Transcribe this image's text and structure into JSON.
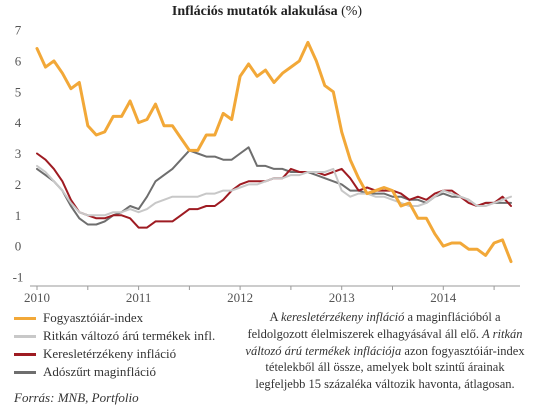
{
  "chart_data": {
    "type": "line",
    "title": "Inflációs mutatók alakulása",
    "title_unit": "(%)",
    "x": [
      "2010-01",
      "2010-02",
      "2010-03",
      "2010-04",
      "2010-05",
      "2010-06",
      "2010-07",
      "2010-08",
      "2010-09",
      "2010-10",
      "2010-11",
      "2010-12",
      "2011-01",
      "2011-02",
      "2011-03",
      "2011-04",
      "2011-05",
      "2011-06",
      "2011-07",
      "2011-08",
      "2011-09",
      "2011-10",
      "2011-11",
      "2011-12",
      "2012-01",
      "2012-02",
      "2012-03",
      "2012-04",
      "2012-05",
      "2012-06",
      "2012-07",
      "2012-08",
      "2012-09",
      "2012-10",
      "2012-11",
      "2012-12",
      "2013-01",
      "2013-02",
      "2013-03",
      "2013-04",
      "2013-05",
      "2013-06",
      "2013-07",
      "2013-08",
      "2013-09",
      "2013-10",
      "2013-11",
      "2013-12",
      "2014-01",
      "2014-02",
      "2014-03",
      "2014-04",
      "2014-05",
      "2014-06",
      "2014-07",
      "2014-08",
      "2014-09"
    ],
    "xticks": [
      "2010",
      "2011",
      "2012",
      "2013",
      "2014"
    ],
    "yticks": [
      7,
      6,
      5,
      4,
      3,
      2,
      1,
      0,
      -1
    ],
    "ylim": [
      -1,
      7
    ],
    "grid": false,
    "legend": "bottom-left",
    "series": [
      {
        "name": "Fogyasztóiár-index",
        "color": "#F2A838",
        "values": [
          6.4,
          5.8,
          6.0,
          5.6,
          5.1,
          5.3,
          3.9,
          3.6,
          3.7,
          4.2,
          4.2,
          4.7,
          4.0,
          4.1,
          4.6,
          3.9,
          3.9,
          3.5,
          3.1,
          3.1,
          3.6,
          3.6,
          4.3,
          4.1,
          5.5,
          5.9,
          5.5,
          5.7,
          5.3,
          5.6,
          5.8,
          6.0,
          6.6,
          6.0,
          5.2,
          5.0,
          3.7,
          2.8,
          2.2,
          1.7,
          1.8,
          1.9,
          1.8,
          1.3,
          1.4,
          0.9,
          0.9,
          0.4,
          0.0,
          0.1,
          0.1,
          -0.1,
          -0.1,
          -0.3,
          0.1,
          0.2,
          -0.5
        ]
      },
      {
        "name": "Ritkán változó árú termékek infl.",
        "color": "#C8C8C8",
        "values": [
          2.6,
          2.4,
          2.1,
          1.8,
          1.4,
          1.1,
          1.0,
          1.0,
          1.0,
          1.1,
          1.1,
          1.2,
          1.1,
          1.2,
          1.4,
          1.5,
          1.6,
          1.6,
          1.6,
          1.6,
          1.7,
          1.7,
          1.8,
          1.8,
          1.9,
          2.0,
          2.0,
          2.1,
          2.2,
          2.2,
          2.3,
          2.3,
          2.4,
          2.4,
          2.4,
          2.5,
          1.8,
          1.6,
          1.7,
          1.7,
          1.6,
          1.6,
          1.5,
          1.4,
          1.3,
          1.3,
          1.4,
          1.6,
          1.8,
          1.7,
          1.6,
          1.5,
          1.3,
          1.3,
          1.4,
          1.5,
          1.6
        ]
      },
      {
        "name": "Keresletérzékeny infláció",
        "color": "#9E1B22",
        "values": [
          3.0,
          2.8,
          2.5,
          2.1,
          1.5,
          1.1,
          1.0,
          0.9,
          0.9,
          1.0,
          1.0,
          0.9,
          0.6,
          0.6,
          0.8,
          0.8,
          0.8,
          1.0,
          1.2,
          1.2,
          1.3,
          1.3,
          1.5,
          1.8,
          2.0,
          2.1,
          2.1,
          2.1,
          2.2,
          2.2,
          2.5,
          2.4,
          2.4,
          2.4,
          2.3,
          2.4,
          2.5,
          2.2,
          1.8,
          1.9,
          1.8,
          1.8,
          1.8,
          1.7,
          1.5,
          1.6,
          1.5,
          1.7,
          1.8,
          1.8,
          1.6,
          1.4,
          1.3,
          1.4,
          1.4,
          1.6,
          1.3
        ]
      },
      {
        "name": "Adószűrt maginfláció",
        "color": "#6E6E6E",
        "values": [
          2.5,
          2.3,
          2.1,
          1.8,
          1.3,
          0.9,
          0.7,
          0.7,
          0.8,
          1.0,
          1.1,
          1.3,
          1.2,
          1.6,
          2.1,
          2.3,
          2.5,
          2.8,
          3.1,
          3.0,
          2.9,
          2.9,
          2.8,
          2.8,
          3.0,
          3.2,
          2.6,
          2.6,
          2.5,
          2.5,
          2.4,
          2.4,
          2.4,
          2.3,
          2.2,
          2.1,
          2.0,
          1.8,
          1.8,
          1.7,
          1.7,
          1.7,
          1.6,
          1.6,
          1.5,
          1.5,
          1.4,
          1.6,
          1.7,
          1.6,
          1.6,
          1.5,
          1.3,
          1.4,
          1.4,
          1.4,
          1.4
        ]
      }
    ]
  },
  "note": [
    "A",
    "keresletérzékeny infláció",
    "a maginflációból a feldolgozott élelmiszerek elhagyásával áll elő.",
    "A ritkán változó árú termékek inflációja",
    "azon fogyasztóiár-index tételekből áll össze, amelyek bolt szintű árainak legfeljebb 15 százaléka változik havonta, átlagosan."
  ],
  "source": "Forrás: MNB, Portfolio"
}
